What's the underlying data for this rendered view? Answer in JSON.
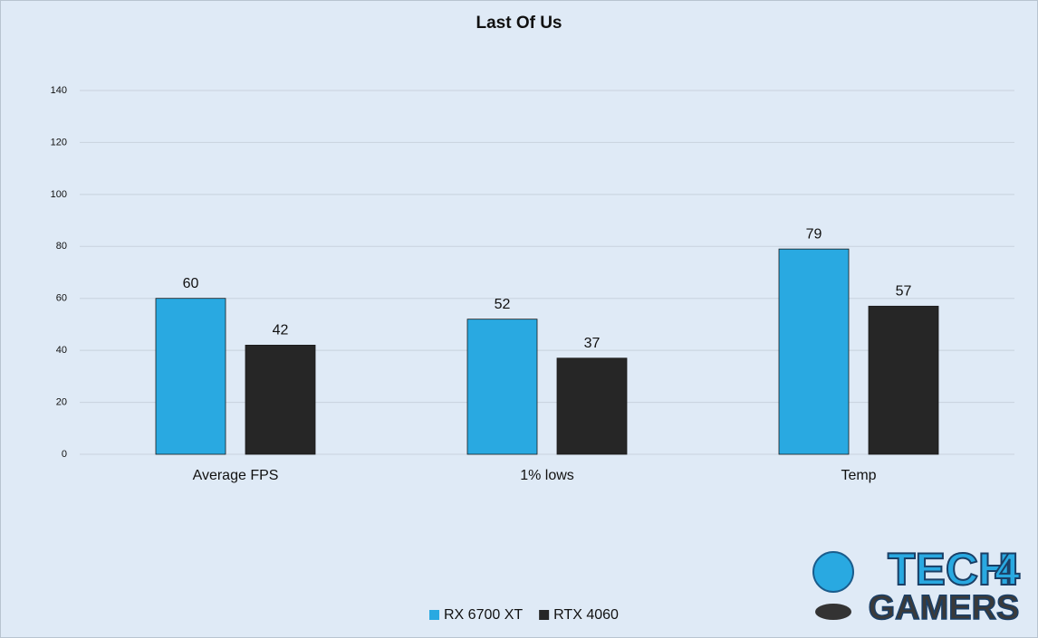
{
  "chart_data": {
    "type": "bar",
    "title": "Last Of Us",
    "categories": [
      "Average FPS",
      "1% lows",
      "Temp"
    ],
    "series": [
      {
        "name": "RX 6700 XT",
        "color": "#29a9e1",
        "values": [
          60,
          52,
          79
        ]
      },
      {
        "name": "RTX 4060",
        "color": "#262626",
        "values": [
          42,
          37,
          57
        ]
      }
    ],
    "ylim": [
      0,
      140
    ],
    "yticks": [
      0,
      20,
      40,
      60,
      80,
      100,
      120,
      140
    ],
    "grid": true,
    "legend": "bottom"
  },
  "watermark": {
    "word1": "TECH",
    "digit": "4",
    "word2": "GAMERS"
  }
}
